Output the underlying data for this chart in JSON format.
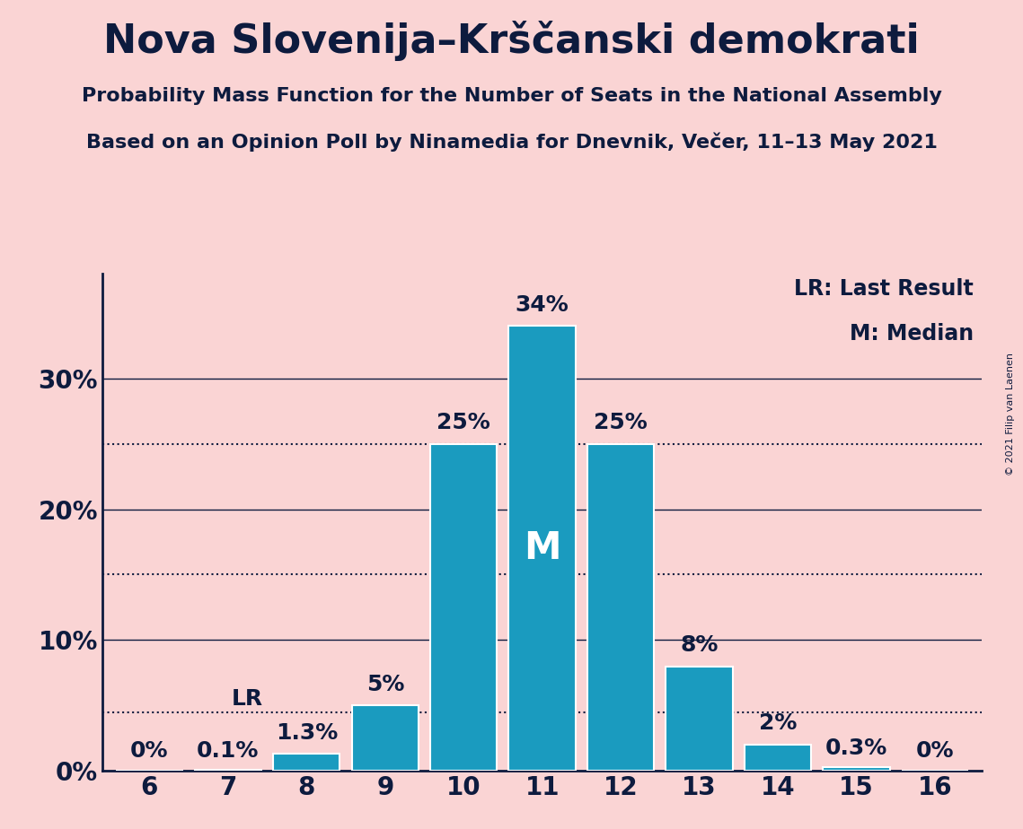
{
  "title": "Nova Slovenija–Krščanski demokrati",
  "subtitle1": "Probability Mass Function for the Number of Seats in the National Assembly",
  "subtitle2": "Based on an Opinion Poll by Ninamedia for Dnevnik, Večer, 11–13 May 2021",
  "copyright": "© 2021 Filip van Laenen",
  "categories": [
    6,
    7,
    8,
    9,
    10,
    11,
    12,
    13,
    14,
    15,
    16
  ],
  "values": [
    0.0,
    0.1,
    1.3,
    5.0,
    25.0,
    34.0,
    25.0,
    8.0,
    2.0,
    0.3,
    0.0
  ],
  "labels": [
    "0%",
    "0.1%",
    "1.3%",
    "5%",
    "25%",
    "34%",
    "25%",
    "8%",
    "2%",
    "0.3%",
    "0%"
  ],
  "bar_color": "#1a9bbf",
  "background_color": "#fad4d4",
  "text_color": "#0d1b3e",
  "bar_edge_color": "white",
  "median_seat": 11,
  "lr_seat": 7,
  "dotted_lines": [
    4.5,
    15.0,
    25.0
  ],
  "ylim": [
    0,
    38
  ],
  "yticks": [
    0,
    10,
    20,
    30
  ],
  "ytick_labels": [
    "0%",
    "10%",
    "20%",
    "30%"
  ],
  "legend_lr": "LR: Last Result",
  "legend_m": "M: Median",
  "title_fontsize": 32,
  "subtitle_fontsize": 16,
  "bar_label_fontsize": 18,
  "axis_label_fontsize": 20,
  "legend_fontsize": 17
}
